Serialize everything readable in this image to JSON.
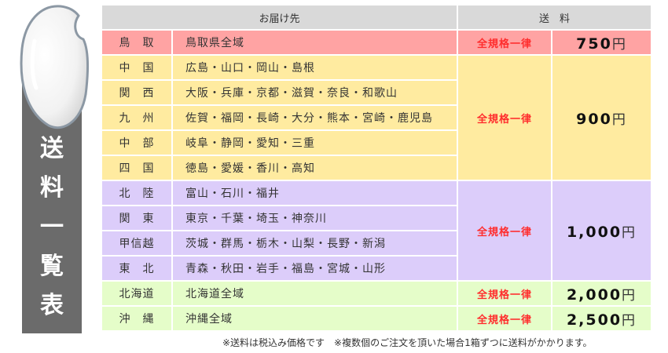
{
  "sidebar": {
    "title_chars": [
      "送",
      "料",
      "一",
      "覧",
      "表"
    ],
    "title": "送料一覧表"
  },
  "header": {
    "destination": "お届け先",
    "shipping": "送　料"
  },
  "colors": {
    "header": "#d9d9d9",
    "red": "#ffa3a3",
    "yellow": "#ffeba0",
    "purple": "#dccdfa",
    "green": "#e5fdc9",
    "label_text": "#ff2d2d",
    "sidebar": "#6b6b6b"
  },
  "groups": [
    {
      "label": "全規格一律",
      "price": "750",
      "unit": "円",
      "rows": [
        {
          "region": "鳥　取",
          "areas": "鳥取県全域"
        }
      ]
    },
    {
      "label": "全規格一律",
      "price": "900",
      "unit": "円",
      "rows": [
        {
          "region": "中　国",
          "areas": "広島・山口・岡山・島根"
        },
        {
          "region": "関　西",
          "areas": "大阪・兵庫・京都・滋賀・奈良・和歌山"
        },
        {
          "region": "九　州",
          "areas": "佐賀・福岡・長崎・大分・熊本・宮崎・鹿児島"
        },
        {
          "region": "中　部",
          "areas": "岐阜・静岡・愛知・三重"
        },
        {
          "region": "四　国",
          "areas": "徳島・愛媛・香川・高知"
        }
      ]
    },
    {
      "label": "全規格一律",
      "price": "1,000",
      "unit": "円",
      "rows": [
        {
          "region": "北　陸",
          "areas": "富山・石川・福井"
        },
        {
          "region": "関　東",
          "areas": "東京・千葉・埼玉・神奈川"
        },
        {
          "region": "甲信越",
          "areas": "茨城・群馬・栃木・山梨・長野・新潟"
        },
        {
          "region": "東　北",
          "areas": "青森・秋田・岩手・福島・宮城・山形"
        }
      ]
    },
    {
      "label": "全規格一律",
      "price": "2,000",
      "unit": "円",
      "rows": [
        {
          "region": "北海道",
          "areas": "北海道全域"
        }
      ]
    },
    {
      "label": "全規格一律",
      "price": "2,500",
      "unit": "円",
      "rows": [
        {
          "region": "沖　縄",
          "areas": "沖縄全域"
        }
      ]
    }
  ],
  "note": "※送料は税込み価格です　※複数個のご注文を頂いた場合1箱ずつに送料がかかります。"
}
